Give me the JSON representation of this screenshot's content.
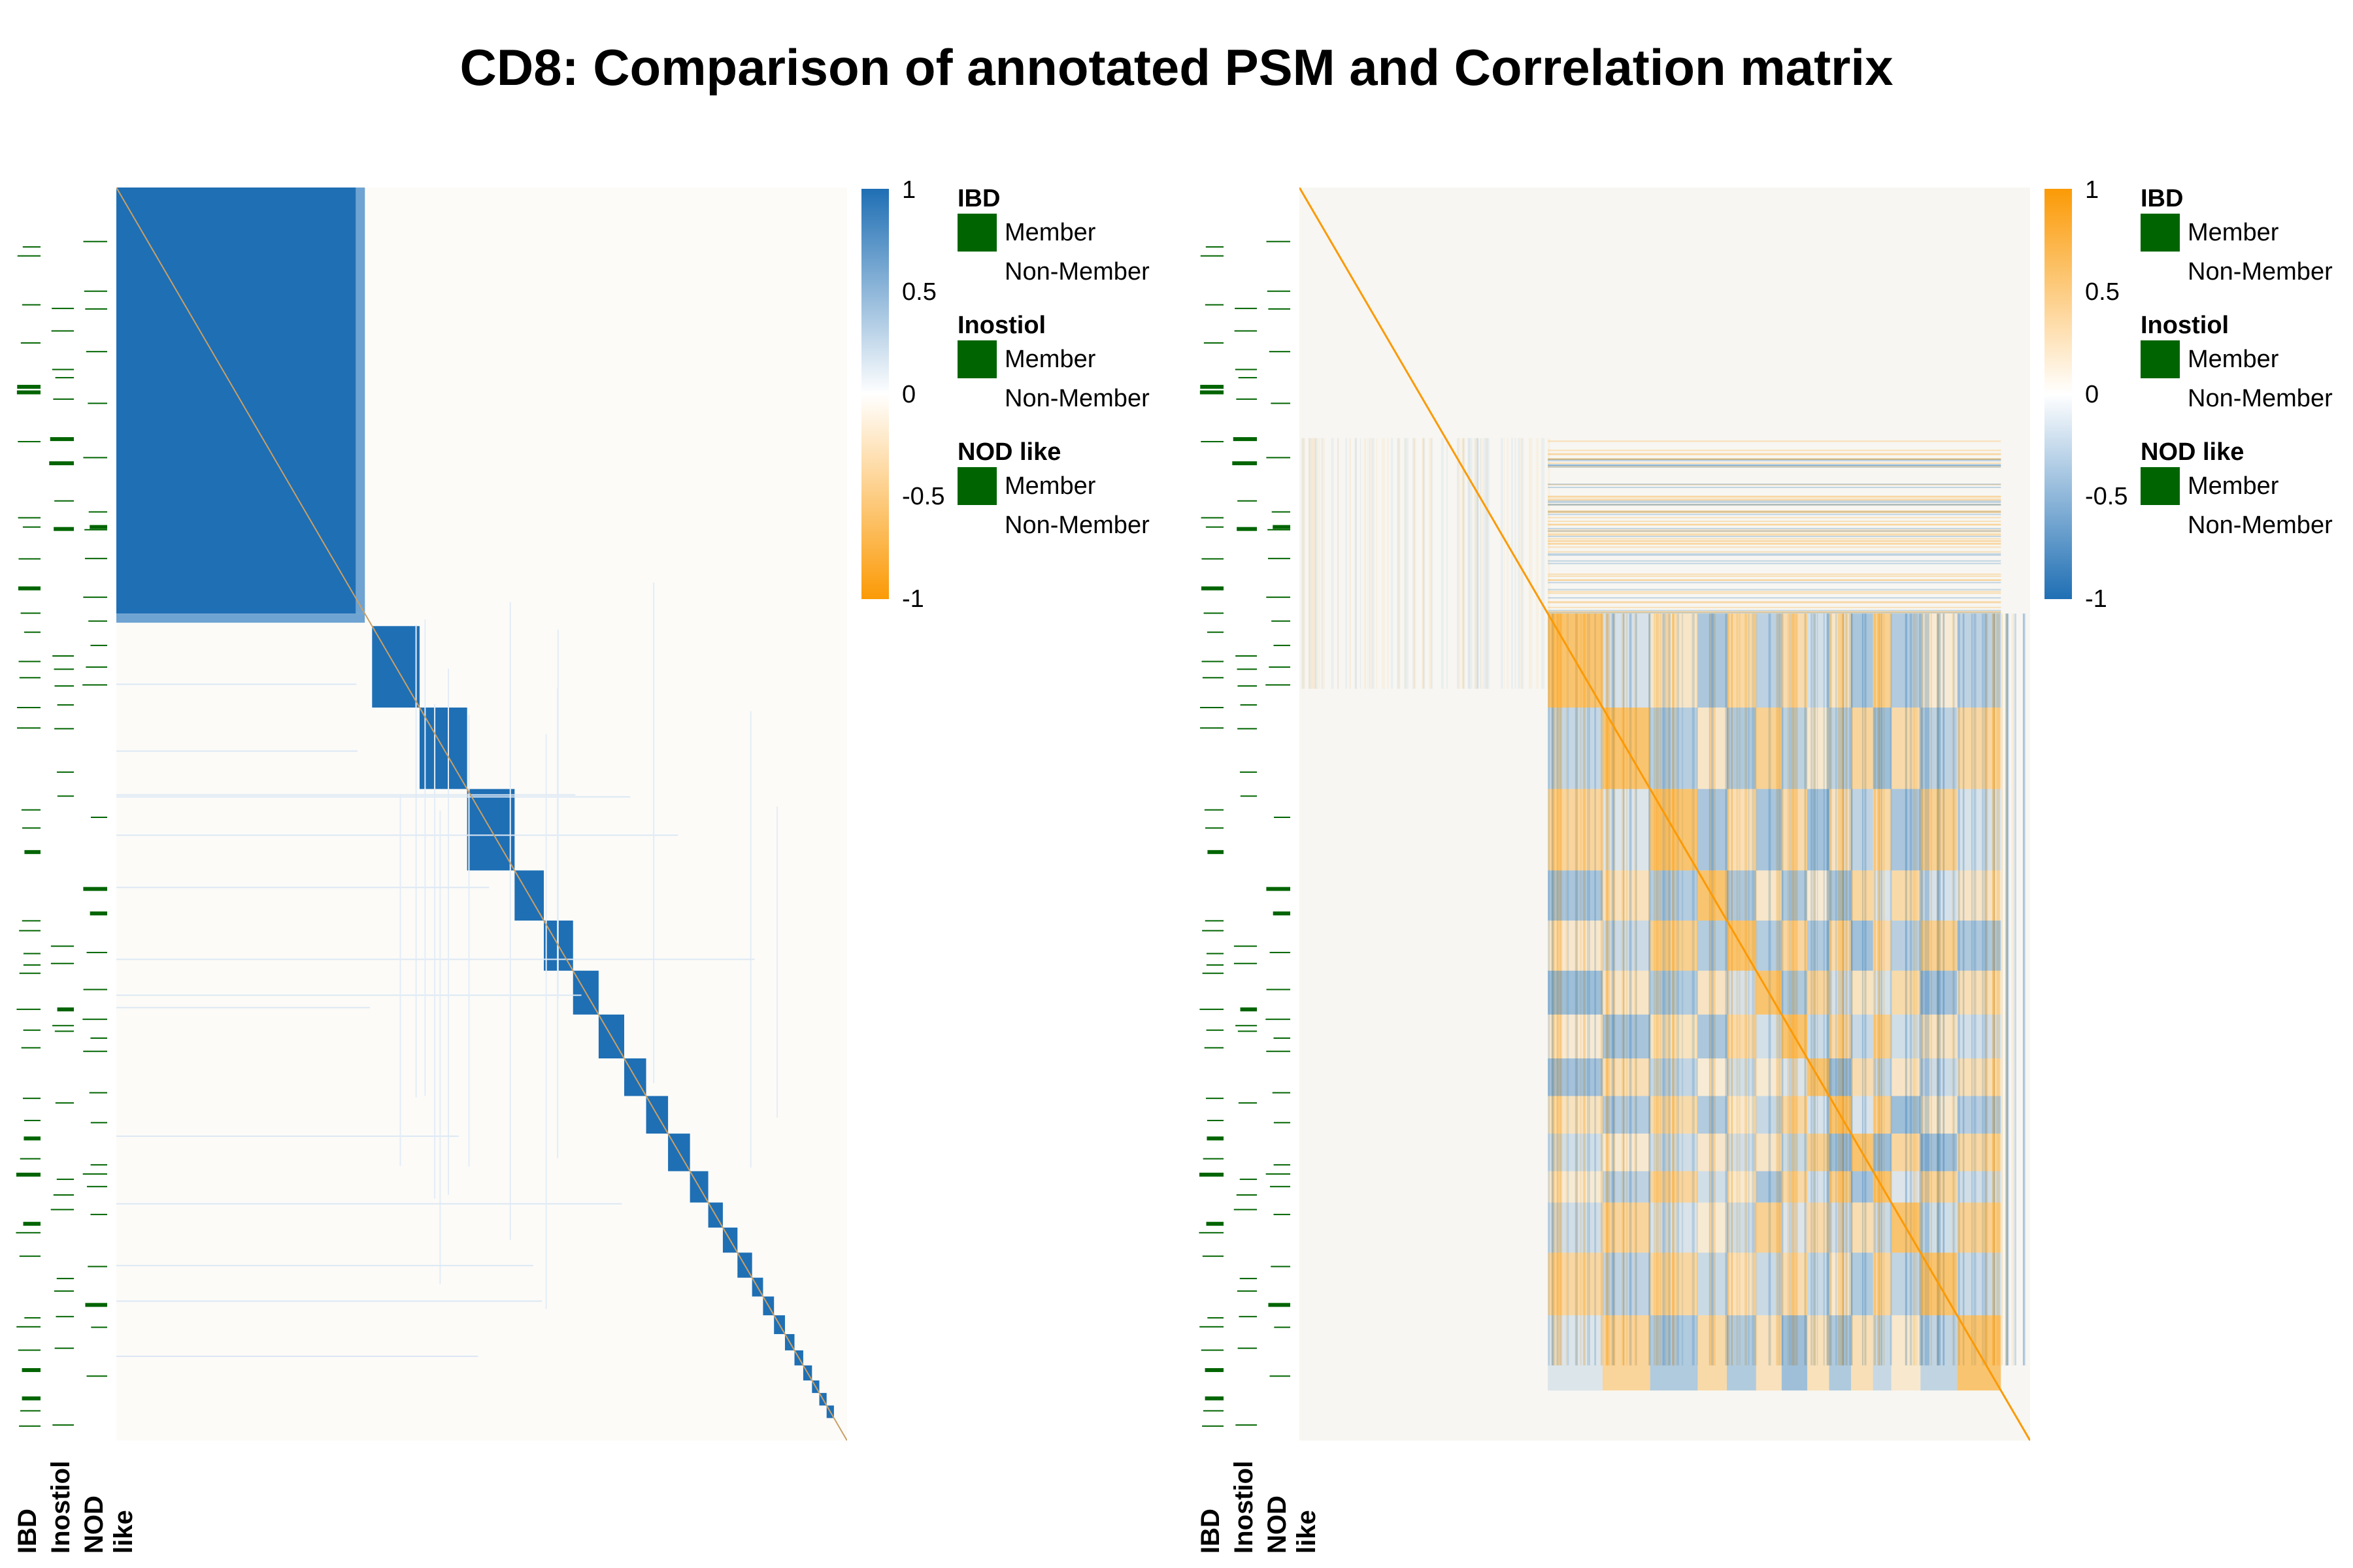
{
  "title": "CD8: Comparison of annotated PSM and Correlation matrix",
  "colors": {
    "blue": "#1f6fb4",
    "orange": "#fb9a06",
    "white": "#fcfbf8",
    "member_green": "#006400"
  },
  "annotation_labels": [
    "IBD",
    "Inostiol",
    "NOD like"
  ],
  "legend": {
    "groups": [
      {
        "title": "IBD",
        "member": "Member",
        "non_member": "Non-Member"
      },
      {
        "title": "Inostiol",
        "member": "Member",
        "non_member": "Non-Member"
      },
      {
        "title": "NOD like",
        "member": "Member",
        "non_member": "Non-Member"
      }
    ]
  },
  "chart_data": [
    {
      "type": "heatmap",
      "name": "Annotated PSM",
      "colorbar": {
        "ticks": [
          "1",
          "0.5",
          "0",
          "-0.5",
          "-1"
        ],
        "high_color": "#1f6fb4",
        "low_color": "#fb9a06",
        "range": [
          -1,
          1
        ]
      },
      "blocks": [
        {
          "start": 0.0,
          "end": 0.34,
          "value": 1
        },
        {
          "start": 0.35,
          "end": 0.415,
          "value": 1
        },
        {
          "start": 0.415,
          "end": 0.48,
          "value": 1
        },
        {
          "start": 0.48,
          "end": 0.545,
          "value": 1
        },
        {
          "start": 0.545,
          "end": 0.585,
          "value": 1
        },
        {
          "start": 0.585,
          "end": 0.625,
          "value": 1
        },
        {
          "start": 0.625,
          "end": 0.66,
          "value": 1
        },
        {
          "start": 0.66,
          "end": 0.695,
          "value": 1
        },
        {
          "start": 0.695,
          "end": 0.725,
          "value": 1
        },
        {
          "start": 0.725,
          "end": 0.755,
          "value": 1
        },
        {
          "start": 0.755,
          "end": 0.785,
          "value": 1
        },
        {
          "start": 0.785,
          "end": 0.81,
          "value": 1
        },
        {
          "start": 0.81,
          "end": 0.83,
          "value": 1
        },
        {
          "start": 0.83,
          "end": 0.85,
          "value": 1
        },
        {
          "start": 0.85,
          "end": 0.87,
          "value": 1
        },
        {
          "start": 0.87,
          "end": 0.885,
          "value": 1
        },
        {
          "start": 0.885,
          "end": 0.9,
          "value": 1
        },
        {
          "start": 0.9,
          "end": 0.915,
          "value": 1
        },
        {
          "start": 0.915,
          "end": 0.928,
          "value": 1
        },
        {
          "start": 0.928,
          "end": 0.94,
          "value": 1
        },
        {
          "start": 0.94,
          "end": 0.952,
          "value": 1
        },
        {
          "start": 0.952,
          "end": 0.962,
          "value": 1
        },
        {
          "start": 0.962,
          "end": 0.972,
          "value": 1
        },
        {
          "start": 0.972,
          "end": 0.982,
          "value": 1
        }
      ]
    },
    {
      "type": "heatmap",
      "name": "Correlation matrix",
      "colorbar": {
        "ticks": [
          "1",
          "0.5",
          "0",
          "-0.5",
          "-1"
        ],
        "high_color": "#fb9a06",
        "low_color": "#1f6fb4",
        "range": [
          -1,
          1
        ]
      },
      "blocks": [
        {
          "start": 0.34,
          "end": 0.415,
          "value": 0.5
        },
        {
          "start": 0.415,
          "end": 0.48,
          "value": 0.5
        },
        {
          "start": 0.48,
          "end": 0.545,
          "value": 0.5
        },
        {
          "start": 0.545,
          "end": 0.585,
          "value": 0.4
        },
        {
          "start": 0.625,
          "end": 0.66,
          "value": 0.3
        },
        {
          "start": 0.66,
          "end": 0.725,
          "value": 0.3
        },
        {
          "start": 0.755,
          "end": 0.81,
          "value": 0.3
        },
        {
          "start": 0.85,
          "end": 0.9,
          "value": 0.3
        }
      ]
    }
  ]
}
